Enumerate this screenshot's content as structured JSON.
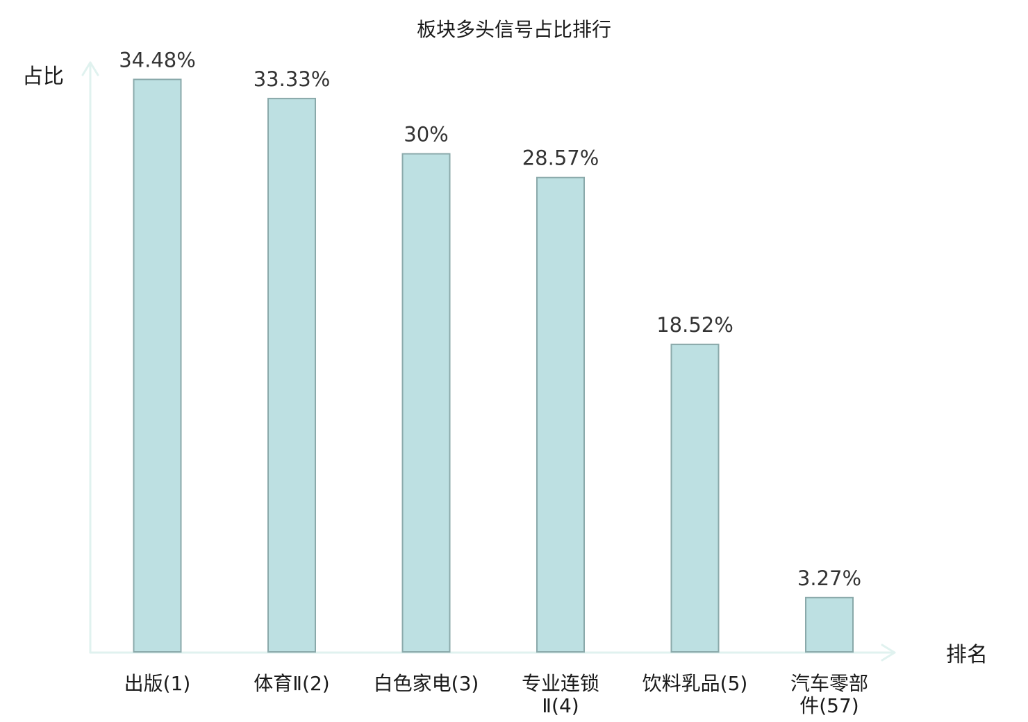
{
  "chart_data": {
    "type": "bar",
    "title": "板块多头信号占比排行",
    "ylabel": "占比",
    "xlabel": "排名",
    "categories": [
      [
        "出版(1)"
      ],
      [
        "体育Ⅱ(2)"
      ],
      [
        "白色家电(3)"
      ],
      [
        "专业连锁",
        "Ⅱ(4)"
      ],
      [
        "饮料乳品(5)"
      ],
      [
        "汽车零部",
        "件(57)"
      ]
    ],
    "values": [
      34.48,
      33.33,
      30,
      28.57,
      18.52,
      3.27
    ],
    "value_labels": [
      "34.48%",
      "33.33%",
      "30%",
      "28.57%",
      "18.52%",
      "3.27%"
    ],
    "highlight_index": 5,
    "ylim": [
      0,
      35.5
    ],
    "grid": false,
    "colors": {
      "bar_fill": "#bde0e2",
      "bar_stroke": "#8aa9aa",
      "axis": "#e0f2ef",
      "highlight_text": "#e0161c",
      "text": "#1a1a1a"
    }
  }
}
